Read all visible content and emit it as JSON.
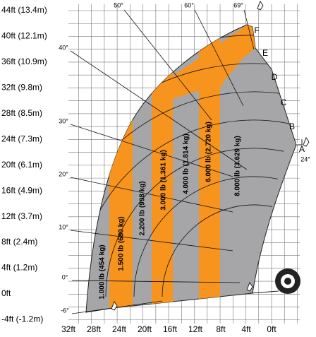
{
  "y_axis": {
    "labels": [
      "44ft (13.4m)",
      "40ft (12.1m)",
      "36ft (10.9m)",
      "32ft (9.8m)",
      "28ft (8.5m)",
      "24ft (7.3m)",
      "20ft (6.1m)",
      "16ft (4.9m)",
      "12ft (3.7m)",
      "8ft (2.4m)",
      "4ft (1.2m)",
      "0ft",
      "-4ft (-1.2m)"
    ]
  },
  "x_axis": {
    "labels": [
      "32ft",
      "28ft",
      "24ft",
      "20ft",
      "16ft",
      "12ft",
      "8ft",
      "4ft",
      "0ft"
    ]
  },
  "angles": [
    "50°",
    "60°",
    "69°",
    "40°",
    "30°",
    "20°",
    "10°",
    "0°",
    "-6°"
  ],
  "zones": [
    "1.000 lb (454 kg)",
    "1.500 lb (680 kg)",
    "2.200 lb (998 kg)",
    "3.000 lb (1.361 kg)",
    "4.000 lb (1.814 kg)",
    "6.000 lb (2.720 kg)",
    "8.000 lb (3.629 kg)"
  ],
  "extensions": [
    "A",
    "B",
    "C",
    "D",
    "E",
    "F"
  ],
  "frame_angle": "24°"
}
